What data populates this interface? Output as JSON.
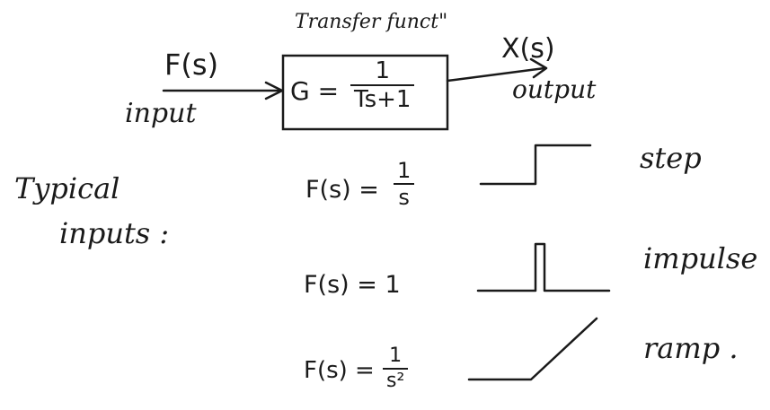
{
  "diagram": {
    "transfer_label": "Transfer funct\"",
    "input_signal": "F(s)",
    "input_label": "input",
    "output_signal": "X(s)",
    "output_label": "output",
    "transfer_lhs": "G =",
    "transfer_num": "1",
    "transfer_den": "Ts+1"
  },
  "typical_inputs": {
    "heading_line1": "Typical",
    "heading_line2": "inputs :",
    "rows": [
      {
        "lhs": "F(s) =",
        "num": "1",
        "den": "s",
        "name": "step"
      },
      {
        "lhs": "F(s) = 1",
        "name": "impulse"
      },
      {
        "lhs": "F(s) =",
        "num": "1",
        "den": "s²",
        "name": "ramp ."
      }
    ]
  }
}
